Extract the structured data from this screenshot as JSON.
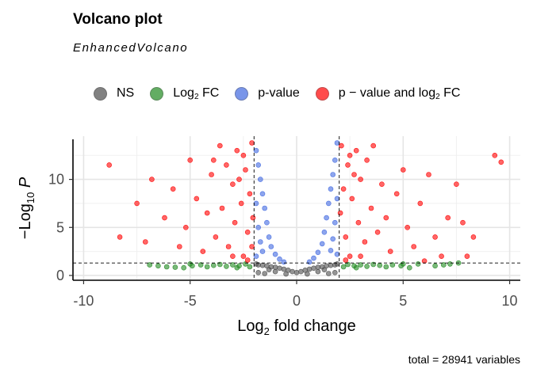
{
  "title": "Volcano plot",
  "subtitle": "EnhancedVolcano",
  "caption": "total = 28941 variables",
  "legend": [
    {
      "label_main": "NS",
      "label_sub": "",
      "label_tail": "",
      "color": "#4d4d4d",
      "icon": "legend-dot"
    },
    {
      "label_main": "Log",
      "label_sub": "2",
      "label_tail": " FC",
      "color": "#228b22",
      "icon": "legend-dot"
    },
    {
      "label_main": "p-value",
      "label_sub": "",
      "label_tail": "",
      "color": "#4169e1",
      "icon": "legend-dot"
    },
    {
      "label_main": "p − value and log",
      "label_sub": "2",
      "label_tail": " FC",
      "color": "#ff0000",
      "icon": "legend-dot"
    }
  ],
  "chart_data": {
    "type": "scatter",
    "title": "Volcano plot",
    "subtitle": "EnhancedVolcano",
    "xlabel_main": "Log",
    "xlabel_sub": "2",
    "xlabel_tail": " fold change",
    "ylabel_main": "−Log",
    "ylabel_sub": "10",
    "ylabel_tail": " P",
    "xlim": [
      -10.5,
      10.5
    ],
    "ylim": [
      -0.5,
      14.5
    ],
    "xticks": [
      -10,
      -5,
      0,
      5,
      10
    ],
    "xtick_labels": [
      "-10",
      "-5",
      "0",
      "5",
      "10"
    ],
    "yticks": [
      0,
      5,
      10
    ],
    "ytick_labels": [
      "0",
      "5",
      "10"
    ],
    "grid": true,
    "legend_position": "top",
    "thresholds": {
      "log2fc": [
        -2,
        2
      ],
      "neg_log10_p": 1.3
    },
    "total_variables": 28941,
    "series": [
      {
        "name": "NS",
        "color": "#4d4d4d",
        "points": [
          [
            0,
            0.3
          ],
          [
            0.2,
            0.4
          ],
          [
            -0.2,
            0.4
          ],
          [
            0.4,
            0.55
          ],
          [
            -0.4,
            0.55
          ],
          [
            0.6,
            0.65
          ],
          [
            -0.6,
            0.65
          ],
          [
            0.8,
            0.75
          ],
          [
            -0.8,
            0.75
          ],
          [
            1.0,
            0.85
          ],
          [
            -1.0,
            0.85
          ],
          [
            1.2,
            0.9
          ],
          [
            -1.2,
            0.9
          ],
          [
            1.4,
            1.0
          ],
          [
            -1.4,
            1.0
          ],
          [
            1.6,
            1.05
          ],
          [
            -1.6,
            1.05
          ],
          [
            1.8,
            1.1
          ],
          [
            -1.8,
            1.1
          ],
          [
            1.9,
            1.2
          ],
          [
            -1.9,
            1.2
          ],
          [
            1.0,
            0.4
          ],
          [
            -1.0,
            0.4
          ],
          [
            1.5,
            0.2
          ],
          [
            -1.5,
            0.2
          ],
          [
            0.5,
            0.15
          ],
          [
            -0.5,
            0.15
          ],
          [
            1.8,
            0.3
          ],
          [
            -1.8,
            0.3
          ],
          [
            1.3,
            0.6
          ],
          [
            -1.3,
            0.6
          ]
        ]
      },
      {
        "name": "Log2 FC",
        "color": "#228b22",
        "points": [
          [
            -6.9,
            1.1
          ],
          [
            -6.5,
            1.0
          ],
          [
            -6.1,
            0.9
          ],
          [
            -5.7,
            0.85
          ],
          [
            -5.3,
            0.8
          ],
          [
            -4.9,
            1.0
          ],
          [
            -4.5,
            1.1
          ],
          [
            -4.2,
            0.9
          ],
          [
            -3.9,
            1.05
          ],
          [
            -3.6,
            1.15
          ],
          [
            -3.3,
            0.95
          ],
          [
            -3.0,
            1.1
          ],
          [
            -2.7,
            1.0
          ],
          [
            -2.4,
            1.2
          ],
          [
            -2.2,
            0.9
          ],
          [
            2.2,
            0.9
          ],
          [
            2.4,
            1.15
          ],
          [
            2.7,
            1.0
          ],
          [
            3.0,
            1.1
          ],
          [
            3.3,
            0.95
          ],
          [
            3.6,
            1.15
          ],
          [
            3.9,
            1.05
          ],
          [
            4.2,
            0.9
          ],
          [
            4.5,
            1.1
          ],
          [
            4.9,
            1.0
          ],
          [
            5.3,
            0.8
          ],
          [
            5.7,
            1.2
          ],
          [
            6.5,
            1.0
          ],
          [
            6.9,
            1.1
          ],
          [
            7.2,
            1.2
          ],
          [
            7.6,
            1.3
          ],
          [
            5.0,
            1.2
          ],
          [
            -5.0,
            1.2
          ],
          [
            -2.8,
            0.8
          ],
          [
            2.8,
            0.8
          ]
        ]
      },
      {
        "name": "p-value",
        "color": "#4169e1",
        "points": [
          [
            -1.9,
            13.0
          ],
          [
            -1.8,
            11.5
          ],
          [
            -1.7,
            10.0
          ],
          [
            -1.6,
            8.5
          ],
          [
            -1.5,
            7.0
          ],
          [
            -1.4,
            5.5
          ],
          [
            -1.3,
            4.0
          ],
          [
            -1.2,
            3.0
          ],
          [
            -1.0,
            2.2
          ],
          [
            -0.8,
            1.7
          ],
          [
            -0.6,
            1.4
          ],
          [
            -1.9,
            7.5
          ],
          [
            -1.8,
            5.0
          ],
          [
            -1.7,
            3.5
          ],
          [
            -1.6,
            2.5
          ],
          [
            -1.9,
            2.0
          ],
          [
            1.9,
            13.8
          ],
          [
            1.8,
            12.0
          ],
          [
            1.7,
            10.5
          ],
          [
            1.6,
            9.0
          ],
          [
            1.5,
            7.5
          ],
          [
            1.4,
            6.0
          ],
          [
            1.3,
            4.5
          ],
          [
            1.2,
            3.3
          ],
          [
            1.0,
            2.4
          ],
          [
            0.8,
            1.8
          ],
          [
            0.6,
            1.4
          ],
          [
            1.9,
            8.0
          ],
          [
            1.8,
            5.5
          ],
          [
            1.7,
            3.8
          ],
          [
            1.6,
            2.6
          ],
          [
            1.9,
            2.2
          ]
        ]
      },
      {
        "name": "p − value and log2 FC",
        "color": "#ff0000",
        "points": [
          [
            -8.8,
            11.5
          ],
          [
            -8.3,
            4.0
          ],
          [
            -7.5,
            7.5
          ],
          [
            -7.1,
            3.5
          ],
          [
            -6.8,
            10.0
          ],
          [
            -6.2,
            6.0
          ],
          [
            -5.8,
            9.0
          ],
          [
            -5.5,
            3.0
          ],
          [
            -5.2,
            5.0
          ],
          [
            -5.0,
            12.0
          ],
          [
            -4.7,
            8.0
          ],
          [
            -4.4,
            2.5
          ],
          [
            -4.2,
            6.5
          ],
          [
            -4.0,
            10.5
          ],
          [
            -3.8,
            4.0
          ],
          [
            -3.6,
            13.5
          ],
          [
            -3.5,
            7.0
          ],
          [
            -3.3,
            11.5
          ],
          [
            -3.2,
            3.0
          ],
          [
            -3.0,
            9.5
          ],
          [
            -2.9,
            5.5
          ],
          [
            -2.8,
            13.0
          ],
          [
            -2.6,
            7.5
          ],
          [
            -2.5,
            2.0
          ],
          [
            -2.4,
            11.0
          ],
          [
            -2.3,
            4.5
          ],
          [
            -2.2,
            8.5
          ],
          [
            -2.1,
            13.8
          ],
          [
            -2.05,
            6.0
          ],
          [
            -2.1,
            3.0
          ],
          [
            -2.3,
            1.6
          ],
          [
            -3.0,
            2.0
          ],
          [
            -2.7,
            10.0
          ],
          [
            -2.5,
            12.5
          ],
          [
            -3.9,
            12.0
          ],
          [
            2.1,
            13.5
          ],
          [
            2.05,
            6.5
          ],
          [
            2.2,
            9.0
          ],
          [
            2.3,
            4.0
          ],
          [
            2.4,
            11.5
          ],
          [
            2.5,
            2.0
          ],
          [
            2.6,
            8.0
          ],
          [
            2.8,
            13.0
          ],
          [
            2.9,
            5.5
          ],
          [
            3.0,
            10.0
          ],
          [
            3.2,
            3.5
          ],
          [
            3.3,
            12.0
          ],
          [
            3.5,
            7.0
          ],
          [
            3.6,
            13.5
          ],
          [
            3.8,
            4.5
          ],
          [
            4.0,
            9.5
          ],
          [
            4.2,
            6.0
          ],
          [
            4.4,
            2.5
          ],
          [
            4.7,
            8.5
          ],
          [
            5.0,
            11.0
          ],
          [
            5.2,
            5.0
          ],
          [
            5.5,
            3.0
          ],
          [
            5.8,
            7.5
          ],
          [
            6.2,
            10.5
          ],
          [
            6.5,
            4.0
          ],
          [
            6.8,
            2.0
          ],
          [
            7.1,
            6.0
          ],
          [
            7.5,
            9.5
          ],
          [
            7.8,
            5.5
          ],
          [
            8.3,
            4.0
          ],
          [
            9.3,
            12.5
          ],
          [
            9.6,
            11.8
          ],
          [
            8.0,
            2.0
          ],
          [
            6.0,
            1.5
          ],
          [
            2.3,
            1.6
          ],
          [
            3.0,
            2.0
          ],
          [
            2.7,
            10.5
          ],
          [
            2.5,
            12.5
          ]
        ]
      }
    ]
  }
}
